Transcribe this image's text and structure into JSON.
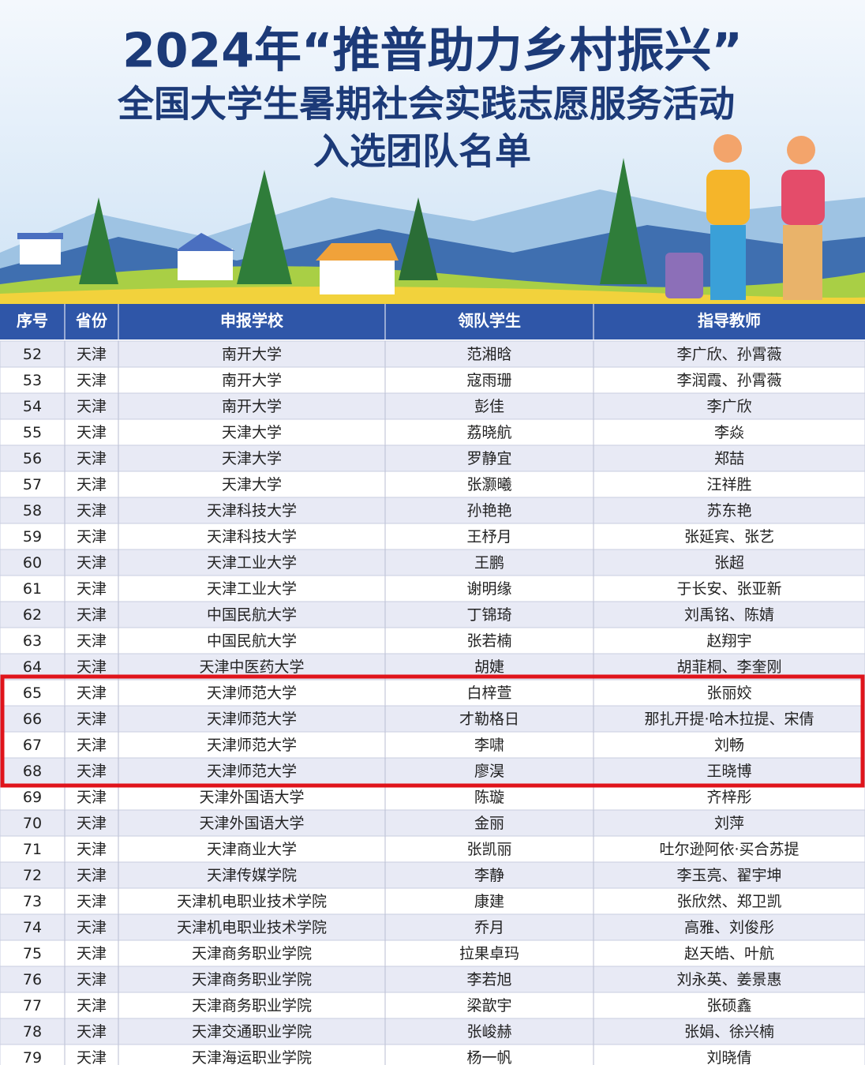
{
  "header": {
    "title_lines": [
      "2024年“推普助力乡村振兴”",
      "全国大学生暑期社会实践志愿服务活动",
      "入选团队名单"
    ]
  },
  "table": {
    "columns": [
      "序号",
      "省份",
      "申报学校",
      "领队学生",
      "指导教师"
    ],
    "rows": [
      [
        "52",
        "天津",
        "南开大学",
        "范湘晗",
        "李广欣、孙霄薇"
      ],
      [
        "53",
        "天津",
        "南开大学",
        "寇雨珊",
        "李润霞、孙霄薇"
      ],
      [
        "54",
        "天津",
        "南开大学",
        "彭佳",
        "李广欣"
      ],
      [
        "55",
        "天津",
        "天津大学",
        "荔晓航",
        "李焱"
      ],
      [
        "56",
        "天津",
        "天津大学",
        "罗静宜",
        "郑喆"
      ],
      [
        "57",
        "天津",
        "天津大学",
        "张灏曦",
        "汪祥胜"
      ],
      [
        "58",
        "天津",
        "天津科技大学",
        "孙艳艳",
        "苏东艳"
      ],
      [
        "59",
        "天津",
        "天津科技大学",
        "王杼月",
        "张延宾、张艺"
      ],
      [
        "60",
        "天津",
        "天津工业大学",
        "王鹏",
        "张超"
      ],
      [
        "61",
        "天津",
        "天津工业大学",
        "谢明缘",
        "于长安、张亚新"
      ],
      [
        "62",
        "天津",
        "中国民航大学",
        "丁锦琦",
        "刘禹铭、陈婧"
      ],
      [
        "63",
        "天津",
        "中国民航大学",
        "张若楠",
        "赵翔宇"
      ],
      [
        "64",
        "天津",
        "天津中医药大学",
        "胡婕",
        "胡菲桐、李奎刚"
      ],
      [
        "65",
        "天津",
        "天津师范大学",
        "白梓萱",
        "张丽姣"
      ],
      [
        "66",
        "天津",
        "天津师范大学",
        "才勒格日",
        "那扎开提·哈木拉提、宋倩"
      ],
      [
        "67",
        "天津",
        "天津师范大学",
        "李啸",
        "刘畅"
      ],
      [
        "68",
        "天津",
        "天津师范大学",
        "廖淏",
        "王晓博"
      ],
      [
        "69",
        "天津",
        "天津外国语大学",
        "陈璇",
        "齐梓彤"
      ],
      [
        "70",
        "天津",
        "天津外国语大学",
        "金丽",
        "刘萍"
      ],
      [
        "71",
        "天津",
        "天津商业大学",
        "张凯丽",
        "吐尔逊阿依·买合苏提"
      ],
      [
        "72",
        "天津",
        "天津传媒学院",
        "李静",
        "李玉亮、翟宇坤"
      ],
      [
        "73",
        "天津",
        "天津机电职业技术学院",
        "康建",
        "张欣然、郑卫凯"
      ],
      [
        "74",
        "天津",
        "天津机电职业技术学院",
        "乔月",
        "高雅、刘俊彤"
      ],
      [
        "75",
        "天津",
        "天津商务职业学院",
        "拉果卓玛",
        "赵天皓、叶航"
      ],
      [
        "76",
        "天津",
        "天津商务职业学院",
        "李若旭",
        "刘永英、姜景惠"
      ],
      [
        "77",
        "天津",
        "天津商务职业学院",
        "梁歆宇",
        "张硕鑫"
      ],
      [
        "78",
        "天津",
        "天津交通职业学院",
        "张峻赫",
        "张娟、徐兴楠"
      ],
      [
        "79",
        "天津",
        "天津海运职业学院",
        "杨一帆",
        "刘晓倩"
      ]
    ]
  }
}
